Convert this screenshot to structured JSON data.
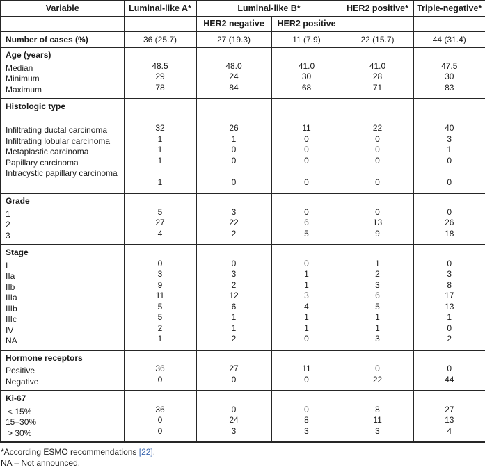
{
  "colors": {
    "link": "#3a66af",
    "border": "#262626",
    "text": "#1a1a1a",
    "background": "#ffffff"
  },
  "table": {
    "header": {
      "row1": [
        "Variable",
        "Luminal-like A*",
        "Luminal-like B*",
        "HER2 positive*",
        "Triple-negative*"
      ],
      "row2_sub": [
        "HER2 negative",
        "HER2 positive"
      ]
    },
    "cases_row": {
      "label": "Number of cases (%)",
      "values": [
        "36 (25.7)",
        "27 (19.3)",
        "11 (7.9)",
        "22 (15.7)",
        "44 (31.4)"
      ]
    },
    "sections": [
      {
        "id": "age",
        "header": "Age (years)",
        "gap_after_header": false,
        "rows": [
          {
            "label": "Median",
            "values": [
              "48.5",
              "48.0",
              "41.0",
              "41.0",
              "47.5"
            ]
          },
          {
            "label": "Minimum",
            "values": [
              "29",
              "24",
              "30",
              "28",
              "30"
            ]
          },
          {
            "label": "Maximum",
            "values": [
              "78",
              "84",
              "68",
              "71",
              "83"
            ]
          }
        ]
      },
      {
        "id": "histologic-type",
        "header": "Histologic type",
        "gap_after_header": true,
        "rows": [
          {
            "label": "Infiltrating ductal carcinoma",
            "values": [
              "32",
              "26",
              "11",
              "22",
              "40"
            ]
          },
          {
            "label": "Infiltrating lobular carcinoma",
            "values": [
              "1",
              "1",
              "0",
              "0",
              "3"
            ]
          },
          {
            "label": "Metaplastic carcinoma",
            "values": [
              "1",
              "0",
              "0",
              "0",
              "1"
            ]
          },
          {
            "label": "Papillary carcinoma",
            "values": [
              "1",
              "0",
              "0",
              "0",
              "0"
            ]
          },
          {
            "label": "Intracystic papillary carcinoma",
            "values_on_next_line": true,
            "values": [
              "1",
              "0",
              "0",
              "0",
              "0"
            ]
          }
        ]
      },
      {
        "id": "grade",
        "header": "Grade",
        "gap_after_header": false,
        "rows": [
          {
            "label": "1",
            "values": [
              "5",
              "3",
              "0",
              "0",
              "0"
            ]
          },
          {
            "label": "2",
            "values": [
              "27",
              "22",
              "6",
              "13",
              "26"
            ]
          },
          {
            "label": "3",
            "values": [
              "4",
              "2",
              "5",
              "9",
              "18"
            ]
          }
        ]
      },
      {
        "id": "stage",
        "header": "Stage",
        "gap_after_header": false,
        "rows": [
          {
            "label": "I",
            "values": [
              "0",
              "0",
              "0",
              "1",
              "0"
            ]
          },
          {
            "label": "IIa",
            "values": [
              "3",
              "3",
              "1",
              "2",
              "3"
            ]
          },
          {
            "label": "IIb",
            "values": [
              "9",
              "2",
              "1",
              "3",
              "8"
            ]
          },
          {
            "label": "IIIa",
            "values": [
              "11",
              "12",
              "3",
              "6",
              "17"
            ]
          },
          {
            "label": "IIIb",
            "values": [
              "5",
              "6",
              "4",
              "5",
              "13"
            ]
          },
          {
            "label": "IIIc",
            "values": [
              "5",
              "1",
              "1",
              "1",
              "1"
            ]
          },
          {
            "label": "IV",
            "values": [
              "2",
              "1",
              "1",
              "1",
              "0"
            ]
          },
          {
            "label": "NA",
            "values": [
              "1",
              "2",
              "0",
              "3",
              "2"
            ]
          }
        ]
      },
      {
        "id": "hormone-receptors",
        "header": "Hormone receptors",
        "gap_after_header": false,
        "rows": [
          {
            "label": "Positive",
            "values": [
              "36",
              "27",
              "11",
              "0",
              "0"
            ]
          },
          {
            "label": "Negative",
            "values": [
              "0",
              "0",
              "0",
              "22",
              "44"
            ]
          }
        ]
      },
      {
        "id": "ki-67",
        "header": "Ki-67",
        "gap_after_header": false,
        "rows": [
          {
            "label": "< 15%",
            "indent": true,
            "values": [
              "36",
              "0",
              "0",
              "8",
              "27"
            ]
          },
          {
            "label": "15–30%",
            "indent": false,
            "values": [
              "0",
              "24",
              "8",
              "11",
              "13"
            ]
          },
          {
            "label": "> 30%",
            "indent": true,
            "values": [
              "0",
              "3",
              "3",
              "3",
              "4"
            ]
          }
        ]
      }
    ]
  },
  "footnotes": {
    "line1_prefix": "*According ESMO recommendations ",
    "line1_link": "[22]",
    "line1_suffix": ".",
    "line2": "NA – Not announced."
  }
}
